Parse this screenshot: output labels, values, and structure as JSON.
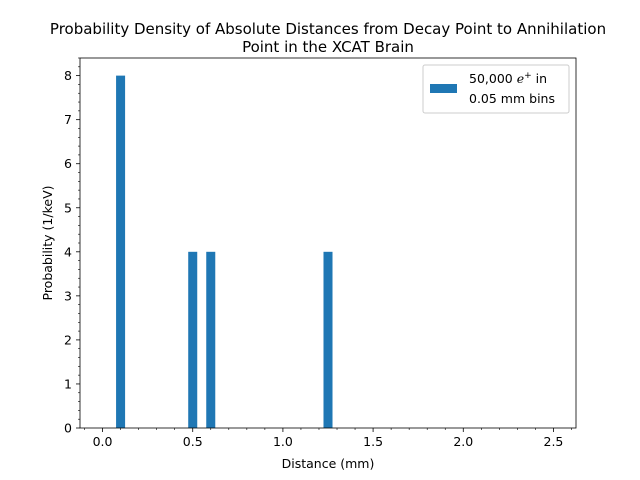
{
  "chart_data": {
    "type": "bar",
    "title_line1": "Probability Density of Absolute Distances from Decay Point to Annihilation",
    "title_line2": "Point in the XCAT Brain",
    "xlabel": "Distance (mm)",
    "ylabel": "Probability (1/keV)",
    "xlim": [
      -0.125,
      2.625
    ],
    "ylim": [
      0,
      8.4
    ],
    "xticks": [
      0.0,
      0.5,
      1.0,
      1.5,
      2.0,
      2.5
    ],
    "xtick_labels": [
      "0.0",
      "0.5",
      "1.0",
      "1.5",
      "2.0",
      "2.5"
    ],
    "yticks": [
      0,
      1,
      2,
      3,
      4,
      5,
      6,
      7,
      8
    ],
    "ytick_labels": [
      "0",
      "1",
      "2",
      "3",
      "4",
      "5",
      "6",
      "7",
      "8"
    ],
    "bin_width": 0.05,
    "bars": [
      {
        "x": 0.1,
        "value": 8
      },
      {
        "x": 0.5,
        "value": 4
      },
      {
        "x": 0.6,
        "value": 4
      },
      {
        "x": 1.25,
        "value": 4
      }
    ],
    "bar_color": "#1f77b4",
    "grid": false,
    "legend": {
      "placement": "top-right",
      "line1_prefix": "50,000 ",
      "line1_math": "e",
      "line1_sup": "+",
      "line1_suffix": " in",
      "line2": "0.05 mm bins"
    }
  }
}
